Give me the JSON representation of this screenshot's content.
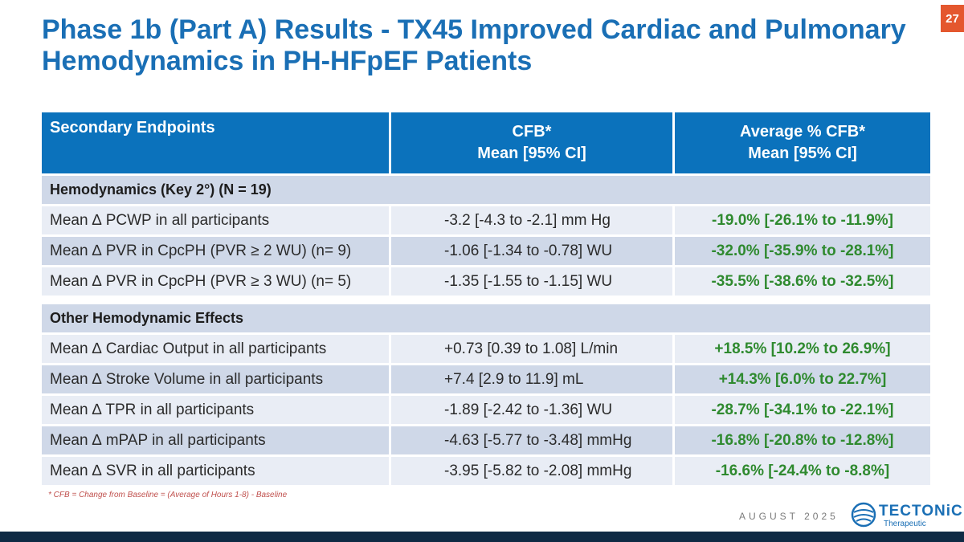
{
  "slide": {
    "title": "Phase 1b (Part A) Results - TX45 Improved Cardiac and Pulmonary Hemodynamics in PH-HFpEF Patients",
    "page_number": "27",
    "footnote": "* CFB = Change from Baseline = (Average of Hours 1-8) - Baseline",
    "date": "AUGUST 2025"
  },
  "table": {
    "headers": {
      "col1": "Secondary Endpoints",
      "col2_line1": "CFB*",
      "col2_line2": "Mean [95% CI]",
      "col3_line1": "Average % CFB*",
      "col3_line2": "Mean [95% CI]"
    },
    "section1": {
      "label": "Hemodynamics (Key 2°) (N = 19)",
      "rows": [
        {
          "endpoint": "Mean ∆ PCWP in all participants",
          "cfb": "-3.2 [-4.3 to -2.1] mm Hg",
          "pct": "-19.0% [-26.1% to -11.9%]"
        },
        {
          "endpoint": "Mean ∆ PVR in CpcPH (PVR ≥ 2 WU) (n= 9)",
          "cfb": "-1.06 [-1.34 to -0.78] WU",
          "pct": "-32.0% [-35.9% to -28.1%]"
        },
        {
          "endpoint": "Mean ∆ PVR in CpcPH (PVR ≥ 3 WU) (n= 5)",
          "cfb": "-1.35 [-1.55 to -1.15] WU",
          "pct": "-35.5% [-38.6% to -32.5%]"
        }
      ]
    },
    "section2": {
      "label": "Other Hemodynamic Effects",
      "rows": [
        {
          "endpoint": "Mean ∆ Cardiac Output in all participants",
          "cfb": "+0.73 [0.39 to 1.08] L/min",
          "pct": "+18.5% [10.2% to 26.9%]"
        },
        {
          "endpoint": "Mean ∆ Stroke Volume in all participants",
          "cfb": "+7.4 [2.9 to 11.9] mL",
          "pct": "+14.3% [6.0% to 22.7%]"
        },
        {
          "endpoint": "Mean ∆ TPR in all participants",
          "cfb": "-1.89 [-2.42 to -1.36] WU",
          "pct": "-28.7% [-34.1% to -22.1%]"
        },
        {
          "endpoint": "Mean ∆ mPAP in all participants",
          "cfb": "-4.63 [-5.77 to -3.48] mmHg",
          "pct": "-16.8% [-20.8% to -12.8%]"
        },
        {
          "endpoint": "Mean ∆ SVR in all participants",
          "cfb": "-3.95 [-5.82 to -2.08] mmHg",
          "pct": "-16.6% [-24.4% to -8.8%]"
        }
      ]
    }
  },
  "logo": {
    "word": "TECTONiC",
    "sub": "Therapeutic"
  },
  "colors": {
    "title": "#1a6fb5",
    "header_bg": "#0b72bc",
    "row_dark": "#cfd8e8",
    "row_light": "#e9edf5",
    "pct_green": "#2f8a2f",
    "page_badge": "#e4572e",
    "bottom_bar": "#0f2a44"
  }
}
